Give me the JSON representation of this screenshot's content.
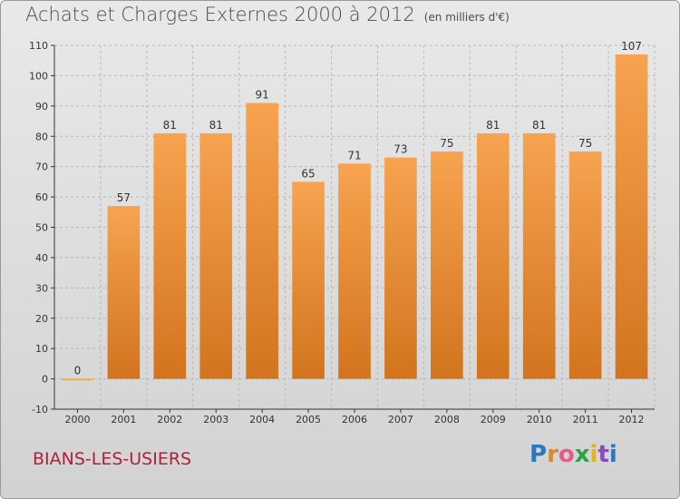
{
  "title": "Achats et Charges Externes 2000 à 2012",
  "unit_note": "(en milliers d'€)",
  "commune": "BIANS-LES-USIERS",
  "logo": {
    "letters": [
      "P",
      "r",
      "o",
      "x",
      "i",
      "t",
      "i"
    ]
  },
  "colors": {
    "bar_top": "#f7a350",
    "bar_bottom": "#d2741e",
    "grid": "#b8b8b8",
    "axis": "#333333",
    "text": "#333333",
    "commune": "#b0203a"
  },
  "chart_data": {
    "type": "bar",
    "title": "Achats et Charges Externes 2000 à 2012",
    "categories": [
      "2000",
      "2001",
      "2002",
      "2003",
      "2004",
      "2005",
      "2006",
      "2007",
      "2008",
      "2009",
      "2010",
      "2011",
      "2012"
    ],
    "values": [
      0,
      57,
      81,
      81,
      91,
      65,
      71,
      73,
      75,
      81,
      81,
      75,
      107
    ],
    "xlabel": "",
    "ylabel": "",
    "ylim": [
      -10,
      110
    ],
    "yticks": [
      -10,
      0,
      10,
      20,
      30,
      40,
      50,
      60,
      70,
      80,
      90,
      100,
      110
    ],
    "grid": true,
    "data_labels": true
  }
}
